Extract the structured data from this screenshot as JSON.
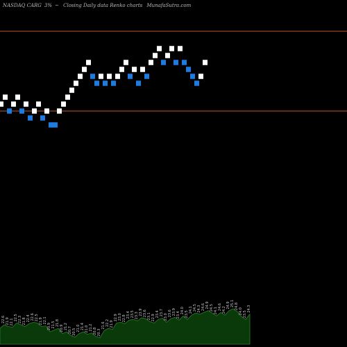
{
  "header": {
    "exchange_symbol": "NASDAQ CARG",
    "change": "3%",
    "marker": "~",
    "description": "Closing Daily data Renko charts",
    "source": "MunafaSutra.com"
  },
  "colors": {
    "background": "#000000",
    "up_brick": "#ffffff",
    "down_brick": "#1e7be0",
    "level_line": "#c0582a",
    "volume_fill": "#0a3a0a",
    "volume_line": "#2e7d2e"
  },
  "chart_data": {
    "type": "renko",
    "title": "NASDAQ CARG 3%~ Closing Daily data Renko charts",
    "y_range": [
      0,
      40
    ],
    "levels": [
      24,
      35.5
    ],
    "bricks": [
      {
        "dir": "up",
        "level": 25
      },
      {
        "dir": "up",
        "level": 26
      },
      {
        "dir": "down",
        "level": 24
      },
      {
        "dir": "up",
        "level": 25
      },
      {
        "dir": "up",
        "level": 26
      },
      {
        "dir": "down",
        "level": 24
      },
      {
        "dir": "up",
        "level": 25
      },
      {
        "dir": "down",
        "level": 23
      },
      {
        "dir": "up",
        "level": 24
      },
      {
        "dir": "up",
        "level": 25
      },
      {
        "dir": "down",
        "level": 23
      },
      {
        "dir": "up",
        "level": 24
      },
      {
        "dir": "down",
        "level": 22
      },
      {
        "dir": "down",
        "level": 22
      },
      {
        "dir": "up",
        "level": 24
      },
      {
        "dir": "up",
        "level": 25
      },
      {
        "dir": "up",
        "level": 26
      },
      {
        "dir": "up",
        "level": 27
      },
      {
        "dir": "up",
        "level": 28
      },
      {
        "dir": "up",
        "level": 29
      },
      {
        "dir": "up",
        "level": 30
      },
      {
        "dir": "up",
        "level": 31
      },
      {
        "dir": "down",
        "level": 29
      },
      {
        "dir": "down",
        "level": 28
      },
      {
        "dir": "up",
        "level": 29
      },
      {
        "dir": "down",
        "level": 28
      },
      {
        "dir": "up",
        "level": 29
      },
      {
        "dir": "down",
        "level": 28
      },
      {
        "dir": "up",
        "level": 29
      },
      {
        "dir": "up",
        "level": 30
      },
      {
        "dir": "up",
        "level": 31
      },
      {
        "dir": "down",
        "level": 29
      },
      {
        "dir": "up",
        "level": 30
      },
      {
        "dir": "down",
        "level": 28
      },
      {
        "dir": "up",
        "level": 30
      },
      {
        "dir": "down",
        "level": 29
      },
      {
        "dir": "up",
        "level": 31
      },
      {
        "dir": "up",
        "level": 32
      },
      {
        "dir": "up",
        "level": 33
      },
      {
        "dir": "down",
        "level": 31
      },
      {
        "dir": "up",
        "level": 32
      },
      {
        "dir": "up",
        "level": 33
      },
      {
        "dir": "down",
        "level": 31
      },
      {
        "dir": "up",
        "level": 33
      },
      {
        "dir": "down",
        "level": 31
      },
      {
        "dir": "down",
        "level": 30
      },
      {
        "dir": "down",
        "level": 29
      },
      {
        "dir": "down",
        "level": 28
      },
      {
        "dir": "up",
        "level": 29
      },
      {
        "dir": "up",
        "level": 31
      }
    ],
    "volume_labels": [
      "21.9",
      "22.6",
      "21.9",
      "22.1",
      "22.5",
      "22.3",
      "21.8",
      "22.4",
      "22.6",
      "22.5",
      "21.9",
      "22.1",
      "20.9",
      "21.5",
      "21.8",
      "20.9",
      "21.2",
      "20.7",
      "20.5",
      "21.0",
      "21.4",
      "21.0",
      "21.2",
      "20.8",
      "20.3",
      "21.6",
      "22.2",
      "21.9",
      "22.9",
      "23.0",
      "22.8",
      "23.4",
      "23.5",
      "23.3",
      "23.9",
      "23.6",
      "23.1",
      "22.9",
      "23.4",
      "23.7",
      "23.0",
      "23.6",
      "23.9",
      "23.4",
      "24.0",
      "23.5",
      "24.1",
      "24.5",
      "24.3",
      "24.6",
      "24.9",
      "24.5",
      "24.1",
      "24.6",
      "24.2",
      "24.9",
      "25.1",
      "24.8",
      "24.0",
      "23.5",
      "24.3"
    ],
    "volume_values": [
      0.45,
      0.55,
      0.5,
      0.48,
      0.6,
      0.55,
      0.5,
      0.58,
      0.62,
      0.6,
      0.5,
      0.52,
      0.35,
      0.4,
      0.45,
      0.3,
      0.35,
      0.25,
      0.2,
      0.3,
      0.35,
      0.28,
      0.32,
      0.22,
      0.18,
      0.38,
      0.45,
      0.42,
      0.6,
      0.62,
      0.58,
      0.68,
      0.7,
      0.66,
      0.75,
      0.72,
      0.64,
      0.6,
      0.7,
      0.74,
      0.62,
      0.72,
      0.76,
      0.68,
      0.8,
      0.7,
      0.82,
      0.88,
      0.85,
      0.9,
      0.95,
      0.88,
      0.8,
      0.9,
      0.82,
      0.95,
      1.0,
      0.92,
      0.78,
      0.7,
      0.85
    ]
  }
}
